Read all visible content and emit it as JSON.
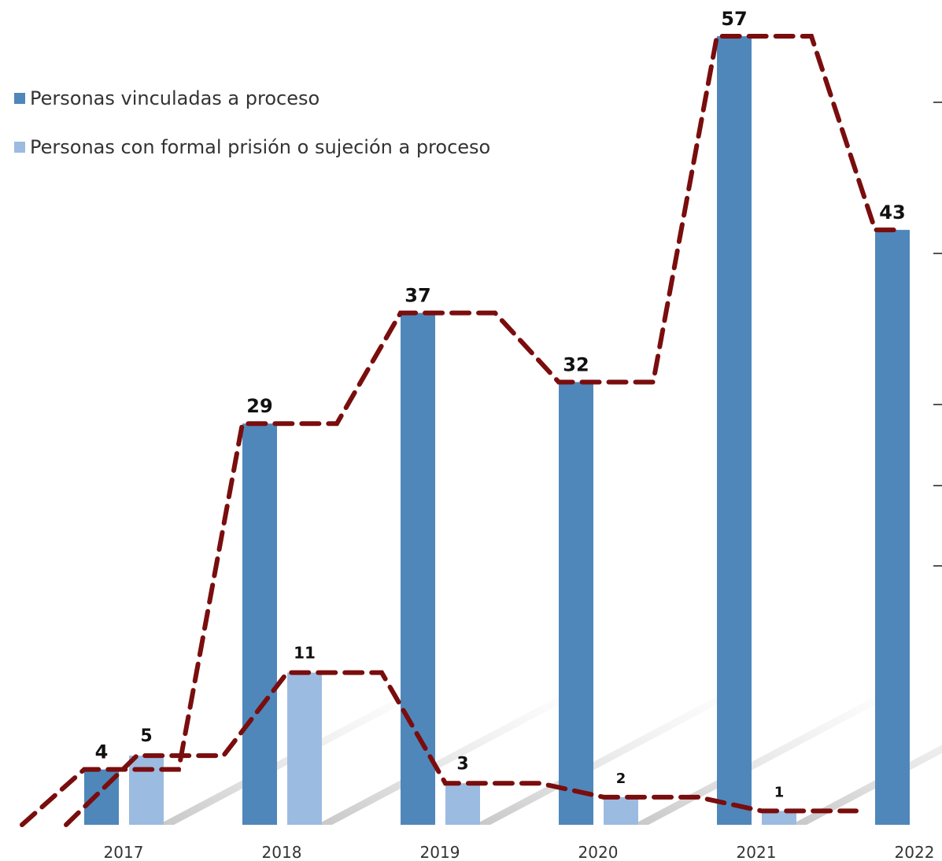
{
  "chart_data": {
    "type": "bar",
    "categories": [
      "2017",
      "2018",
      "2019",
      "2020",
      "2021",
      "2022"
    ],
    "series": [
      {
        "name": "Personas vinculadas a proceso",
        "values": [
          4,
          29,
          37,
          32,
          57,
          43
        ],
        "color": "#4f87bb"
      },
      {
        "name": "Personas con formal prisión o sujeción a proceso",
        "values": [
          5,
          11,
          3,
          2,
          1,
          null
        ],
        "color": "#9cbbe0"
      }
    ],
    "data_labels": [
      [
        "4",
        "29",
        "37",
        "32",
        "57",
        "43"
      ],
      [
        "5",
        "11",
        "3",
        "2",
        "1",
        ""
      ]
    ],
    "trend_lines": {
      "style": "dashed",
      "color": "#7a0d0d"
    },
    "title": "",
    "xlabel": "",
    "ylabel": "",
    "ylim": [
      0,
      58
    ],
    "grid": false,
    "legend_position": "top-left"
  }
}
